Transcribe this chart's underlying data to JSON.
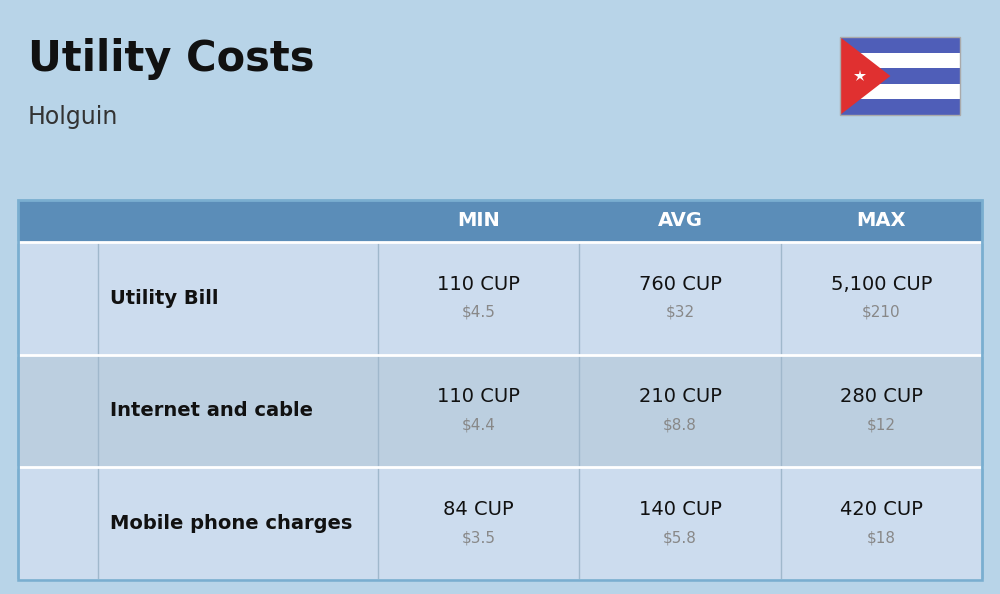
{
  "title": "Utility Costs",
  "subtitle": "Holguin",
  "background_color": "#b8d4e8",
  "header_bg_color": "#5b8db8",
  "header_text_color": "#ffffff",
  "row_bg_color_1": "#ccdcee",
  "row_bg_color_2": "#bccfe0",
  "columns": [
    "MIN",
    "AVG",
    "MAX"
  ],
  "rows": [
    {
      "label": "Utility Bill",
      "cup_values": [
        "110 CUP",
        "760 CUP",
        "5,100 CUP"
      ],
      "usd_values": [
        "$4.5",
        "$32",
        "$210"
      ]
    },
    {
      "label": "Internet and cable",
      "cup_values": [
        "110 CUP",
        "210 CUP",
        "280 CUP"
      ],
      "usd_values": [
        "$4.4",
        "$8.8",
        "$12"
      ]
    },
    {
      "label": "Mobile phone charges",
      "cup_values": [
        "84 CUP",
        "140 CUP",
        "420 CUP"
      ],
      "usd_values": [
        "$3.5",
        "$5.8",
        "$18"
      ]
    }
  ],
  "flag_blue": "#4f5eb8",
  "flag_red": "#e03030",
  "title_fontsize": 30,
  "subtitle_fontsize": 17,
  "header_fontsize": 14,
  "label_fontsize": 14,
  "value_fontsize": 14,
  "usd_fontsize": 11
}
